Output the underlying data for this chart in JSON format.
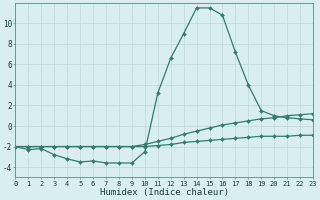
{
  "x": [
    0,
    1,
    2,
    3,
    4,
    5,
    6,
    7,
    8,
    9,
    10,
    11,
    12,
    13,
    14,
    15,
    16,
    17,
    18,
    19,
    20,
    21,
    22,
    23
  ],
  "line1": [
    -2.0,
    -2.3,
    -2.2,
    -2.8,
    -3.2,
    -3.5,
    -3.4,
    -3.6,
    -3.6,
    -3.6,
    -2.5,
    3.2,
    6.6,
    9.0,
    11.5,
    11.5,
    10.8,
    7.2,
    4.0,
    1.5,
    1.0,
    0.8,
    0.7,
    0.6
  ],
  "line2": [
    -2.0,
    -2.0,
    -2.0,
    -2.0,
    -2.0,
    -2.0,
    -2.0,
    -2.0,
    -2.0,
    -2.0,
    -1.8,
    -1.5,
    -1.2,
    -0.8,
    -0.5,
    -0.2,
    0.1,
    0.3,
    0.5,
    0.7,
    0.8,
    1.0,
    1.1,
    1.2
  ],
  "line3": [
    -2.0,
    -2.0,
    -2.0,
    -2.0,
    -2.0,
    -2.0,
    -2.0,
    -2.0,
    -2.0,
    -2.0,
    -2.0,
    -1.9,
    -1.8,
    -1.6,
    -1.5,
    -1.4,
    -1.3,
    -1.2,
    -1.1,
    -1.0,
    -1.0,
    -1.0,
    -0.9,
    -0.9
  ],
  "bg_color": "#d8eef0",
  "grid_major_color": "#c0d8da",
  "grid_minor_color": "#cce4e6",
  "line_color": "#2e7d6e",
  "xlabel": "Humidex (Indice chaleur)",
  "xlim": [
    0,
    23
  ],
  "ylim": [
    -5,
    12
  ],
  "yticks": [
    -4,
    -2,
    0,
    2,
    4,
    6,
    8,
    10
  ],
  "xticks": [
    0,
    1,
    2,
    3,
    4,
    5,
    6,
    7,
    8,
    9,
    10,
    11,
    12,
    13,
    14,
    15,
    16,
    17,
    18,
    19,
    20,
    21,
    22,
    23
  ],
  "figw": 3.2,
  "figh": 2.0,
  "dpi": 100
}
